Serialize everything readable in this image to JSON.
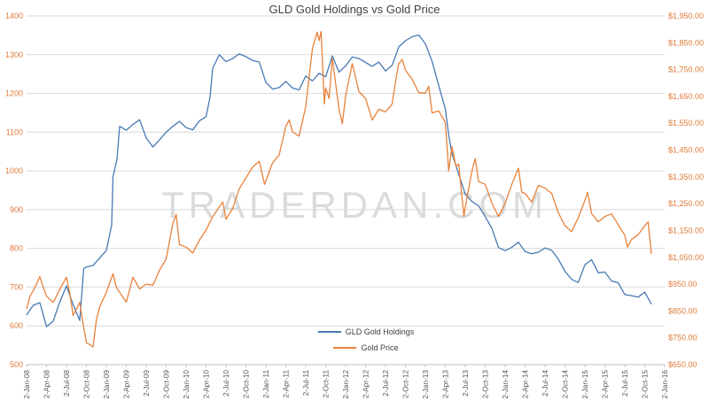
{
  "watermark": "TRADERDAN.COM",
  "chart_data": {
    "type": "line",
    "title": "GLD Gold Holdings vs Gold Price",
    "legend_position": "bottom-center-inside",
    "grid": "horizontal",
    "colors": {
      "gridline": "#d9d9d9",
      "axis_line": "#bfbfbf",
      "axis_labels": "#e07b39",
      "x_axis_labels": "#595959",
      "title": "#3f3f3f",
      "watermark": "#bfbfbf"
    },
    "x_axis": {
      "total_months": 96,
      "months_per_tick": 3,
      "tick_labels": [
        "2-Jan-08",
        "2-Apr-08",
        "2-Jul-08",
        "2-Oct-08",
        "2-Jan-09",
        "2-Apr-09",
        "2-Jul-09",
        "2-Oct-09",
        "2-Jan-10",
        "2-Apr-10",
        "2-Jul-10",
        "2-Oct-10",
        "2-Jan-11",
        "2-Apr-11",
        "2-Jul-11",
        "2-Oct-11",
        "2-Jan-12",
        "2-Apr-12",
        "2-Jul-12",
        "2-Oct-12",
        "2-Jan-13",
        "2-Apr-13",
        "2-Jul-13",
        "2-Oct-13",
        "2-Jan-14",
        "2-Apr-14",
        "2-Jul-14",
        "2-Oct-14",
        "2-Jan-15",
        "2-Apr-15",
        "2-Jul-15",
        "2-Oct-15",
        "2-Jan-16"
      ]
    },
    "left_axis": {
      "min": 500,
      "max": 1400,
      "step": 100,
      "ticks": [
        1400,
        1300,
        1200,
        1100,
        1000,
        900,
        800,
        700,
        600,
        500
      ]
    },
    "right_axis": {
      "min": 650,
      "max": 1950,
      "step": 100,
      "tick_labels": [
        "$1,950.00",
        "$1,850.00",
        "$1,750.00",
        "$1,650.00",
        "$1,550.00",
        "$1,450.00",
        "$1,350.00",
        "$1,250.00",
        "$1,150.00",
        "$1,050.00",
        "$950.00",
        "$850.00",
        "$750.00",
        "$650.00"
      ]
    },
    "series": [
      {
        "name": "GLD Gold Holdings",
        "axis": "left",
        "color": "#4879b4",
        "points": [
          [
            0,
            628
          ],
          [
            1,
            653
          ],
          [
            2,
            660
          ],
          [
            3,
            598
          ],
          [
            4,
            612
          ],
          [
            5,
            662
          ],
          [
            6,
            703
          ],
          [
            7,
            655
          ],
          [
            8,
            614
          ],
          [
            8.6,
            748
          ],
          [
            9,
            752
          ],
          [
            10,
            756
          ],
          [
            11,
            775
          ],
          [
            12,
            795
          ],
          [
            12.8,
            860
          ],
          [
            13,
            985
          ],
          [
            13.6,
            1030
          ],
          [
            14,
            1115
          ],
          [
            15,
            1105
          ],
          [
            16,
            1120
          ],
          [
            17,
            1132
          ],
          [
            18,
            1085
          ],
          [
            19,
            1062
          ],
          [
            20,
            1080
          ],
          [
            21,
            1100
          ],
          [
            22,
            1115
          ],
          [
            23,
            1128
          ],
          [
            24,
            1112
          ],
          [
            25,
            1106
          ],
          [
            26,
            1129
          ],
          [
            27,
            1140
          ],
          [
            27.6,
            1190
          ],
          [
            28,
            1265
          ],
          [
            29,
            1300
          ],
          [
            30,
            1282
          ],
          [
            31,
            1290
          ],
          [
            32,
            1302
          ],
          [
            33,
            1295
          ],
          [
            34,
            1285
          ],
          [
            35,
            1281
          ],
          [
            36,
            1229
          ],
          [
            37,
            1211
          ],
          [
            38,
            1215
          ],
          [
            39,
            1231
          ],
          [
            40,
            1214
          ],
          [
            41,
            1209
          ],
          [
            42,
            1245
          ],
          [
            43,
            1232
          ],
          [
            44,
            1252
          ],
          [
            45,
            1243
          ],
          [
            46,
            1297
          ],
          [
            47,
            1255
          ],
          [
            48,
            1271
          ],
          [
            49,
            1294
          ],
          [
            50,
            1290
          ],
          [
            51,
            1280
          ],
          [
            52,
            1270
          ],
          [
            53,
            1281
          ],
          [
            54,
            1258
          ],
          [
            55,
            1273
          ],
          [
            56,
            1320
          ],
          [
            57,
            1336
          ],
          [
            58,
            1346
          ],
          [
            59,
            1351
          ],
          [
            60,
            1328
          ],
          [
            61,
            1283
          ],
          [
            62,
            1221
          ],
          [
            63,
            1160
          ],
          [
            63.5,
            1092
          ],
          [
            64,
            1045
          ],
          [
            65,
            992
          ],
          [
            66,
            940
          ],
          [
            67,
            921
          ],
          [
            68,
            910
          ],
          [
            69,
            882
          ],
          [
            70,
            852
          ],
          [
            71,
            802
          ],
          [
            72,
            794
          ],
          [
            73,
            803
          ],
          [
            74,
            816
          ],
          [
            75,
            792
          ],
          [
            76,
            786
          ],
          [
            77,
            790
          ],
          [
            78,
            801
          ],
          [
            79,
            795
          ],
          [
            80,
            772
          ],
          [
            81,
            741
          ],
          [
            82,
            720
          ],
          [
            83,
            712
          ],
          [
            84,
            758
          ],
          [
            85,
            771
          ],
          [
            86,
            737
          ],
          [
            87,
            739
          ],
          [
            88,
            716
          ],
          [
            89,
            711
          ],
          [
            90,
            681
          ],
          [
            91,
            678
          ],
          [
            92,
            674
          ],
          [
            93,
            687
          ],
          [
            94,
            656
          ]
        ]
      },
      {
        "name": "Gold Price",
        "axis": "right",
        "color": "#e8823a",
        "points": [
          [
            0,
            858
          ],
          [
            0.5,
            905
          ],
          [
            1,
            925
          ],
          [
            2,
            978
          ],
          [
            2.5,
            938
          ],
          [
            3,
            905
          ],
          [
            4,
            882
          ],
          [
            5,
            930
          ],
          [
            6,
            976
          ],
          [
            6.5,
            915
          ],
          [
            7,
            833
          ],
          [
            8,
            882
          ],
          [
            8.5,
            800
          ],
          [
            9,
            732
          ],
          [
            10,
            716
          ],
          [
            10.5,
            818
          ],
          [
            11,
            865
          ],
          [
            12,
            920
          ],
          [
            13,
            989
          ],
          [
            13.5,
            938
          ],
          [
            14,
            920
          ],
          [
            15,
            883
          ],
          [
            16,
            976
          ],
          [
            17,
            932
          ],
          [
            18,
            950
          ],
          [
            19,
            946
          ],
          [
            20,
            1002
          ],
          [
            21,
            1044
          ],
          [
            22,
            1176
          ],
          [
            22.5,
            1210
          ],
          [
            23,
            1098
          ],
          [
            24,
            1088
          ],
          [
            25,
            1066
          ],
          [
            26,
            1114
          ],
          [
            27,
            1152
          ],
          [
            28,
            1202
          ],
          [
            29,
            1238
          ],
          [
            29.5,
            1256
          ],
          [
            30,
            1192
          ],
          [
            31,
            1232
          ],
          [
            32,
            1306
          ],
          [
            33,
            1346
          ],
          [
            34,
            1386
          ],
          [
            35,
            1408
          ],
          [
            35.8,
            1322
          ],
          [
            36,
            1335
          ],
          [
            37,
            1402
          ],
          [
            38,
            1432
          ],
          [
            39,
            1538
          ],
          [
            39.5,
            1562
          ],
          [
            40,
            1518
          ],
          [
            41,
            1502
          ],
          [
            42,
            1612
          ],
          [
            43,
            1828
          ],
          [
            43.7,
            1890
          ],
          [
            44,
            1858
          ],
          [
            44.3,
            1892
          ],
          [
            44.8,
            1622
          ],
          [
            45,
            1682
          ],
          [
            45.5,
            1642
          ],
          [
            46,
            1792
          ],
          [
            47,
            1604
          ],
          [
            47.5,
            1548
          ],
          [
            48,
            1652
          ],
          [
            49,
            1772
          ],
          [
            50,
            1668
          ],
          [
            51,
            1642
          ],
          [
            52,
            1562
          ],
          [
            53,
            1602
          ],
          [
            54,
            1592
          ],
          [
            55,
            1622
          ],
          [
            55.7,
            1736
          ],
          [
            56,
            1772
          ],
          [
            56.5,
            1788
          ],
          [
            57,
            1748
          ],
          [
            58,
            1714
          ],
          [
            59,
            1664
          ],
          [
            60,
            1662
          ],
          [
            60.5,
            1688
          ],
          [
            61,
            1588
          ],
          [
            62,
            1596
          ],
          [
            63,
            1552
          ],
          [
            63.5,
            1372
          ],
          [
            64,
            1462
          ],
          [
            64.6,
            1388
          ],
          [
            65,
            1398
          ],
          [
            65.8,
            1202
          ],
          [
            66,
            1238
          ],
          [
            67,
            1372
          ],
          [
            67.5,
            1418
          ],
          [
            68,
            1332
          ],
          [
            69,
            1322
          ],
          [
            70,
            1252
          ],
          [
            71,
            1202
          ],
          [
            72,
            1252
          ],
          [
            73,
            1322
          ],
          [
            74,
            1382
          ],
          [
            74.5,
            1292
          ],
          [
            75,
            1288
          ],
          [
            76,
            1256
          ],
          [
            77,
            1318
          ],
          [
            78,
            1308
          ],
          [
            79,
            1288
          ],
          [
            80,
            1216
          ],
          [
            81,
            1168
          ],
          [
            82,
            1146
          ],
          [
            83,
            1198
          ],
          [
            84,
            1262
          ],
          [
            84.4,
            1292
          ],
          [
            85,
            1214
          ],
          [
            86,
            1182
          ],
          [
            87,
            1202
          ],
          [
            88,
            1212
          ],
          [
            89,
            1172
          ],
          [
            90,
            1132
          ],
          [
            90.4,
            1088
          ],
          [
            91,
            1116
          ],
          [
            92,
            1134
          ],
          [
            93,
            1168
          ],
          [
            93.5,
            1182
          ],
          [
            94,
            1062
          ]
        ]
      }
    ]
  }
}
